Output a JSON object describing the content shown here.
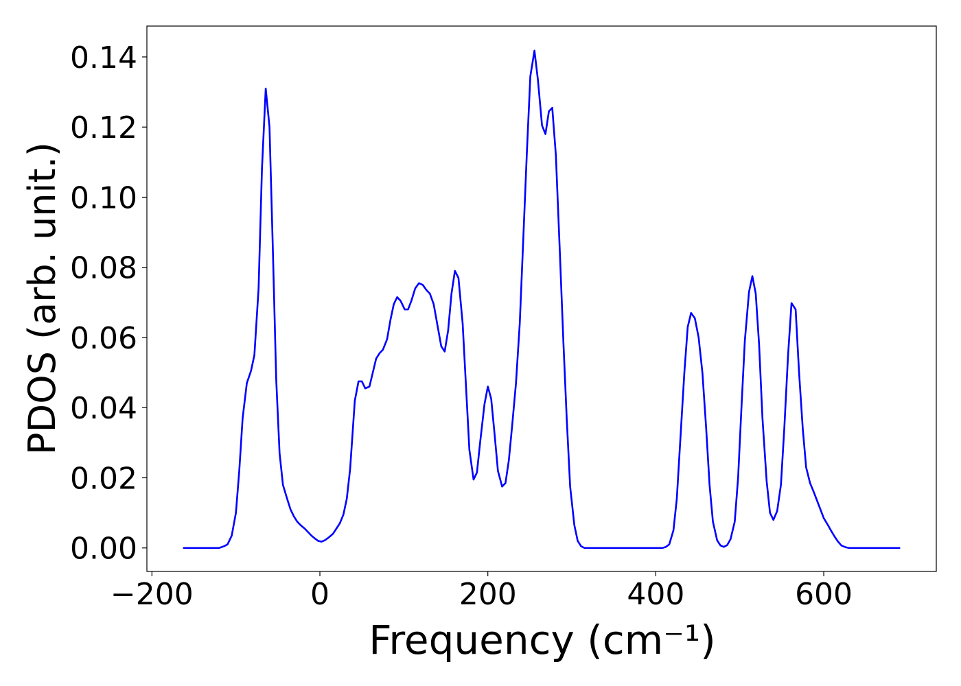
{
  "chart_data": {
    "type": "line",
    "xlabel": "Frequency (cm⁻¹)",
    "ylabel": "PDOS (arb. unit.)",
    "color": "#0000ff",
    "x": [
      -163,
      -120,
      -114,
      -110,
      -105,
      -100,
      -96,
      -92,
      -87,
      -82,
      -78,
      -73,
      -69,
      -64.5,
      -60,
      -56,
      -52,
      -48,
      -44,
      -39,
      -35,
      -31,
      -27,
      -23,
      -18,
      -14,
      -10,
      -6,
      -2,
      2,
      6,
      10.6,
      15.5,
      19.6,
      23.7,
      28,
      32,
      36,
      41.6,
      46,
      50,
      54,
      59,
      63,
      67,
      71,
      75,
      80,
      84,
      88,
      92,
      96,
      101,
      105,
      109,
      113.5,
      118,
      122.5,
      127,
      131,
      135.5,
      139.6,
      144.5,
      148.6,
      152.7,
      156.7,
      160.8,
      165,
      170,
      174,
      178,
      183,
      187,
      191,
      196,
      200,
      204,
      208,
      212,
      217,
      221,
      225,
      229,
      233.5,
      238,
      242,
      246.5,
      250.6,
      255.5,
      259.6,
      264.5,
      268.6,
      272.7,
      276.7,
      281,
      285.7,
      290,
      294,
      298,
      303,
      307,
      311,
      315,
      408,
      412,
      416,
      421,
      425,
      429,
      434,
      438,
      442,
      446.5,
      451,
      455.5,
      460,
      464,
      468,
      473,
      477,
      481,
      485,
      489,
      494,
      498,
      502,
      506,
      511,
      515,
      519,
      523,
      527,
      532,
      536,
      540,
      544.5,
      549,
      553,
      557.5,
      561.6,
      566.5,
      570.6,
      575,
      579,
      583.7,
      588,
      592,
      596,
      600,
      605,
      609,
      613,
      617,
      621,
      626,
      630,
      691
    ],
    "values": [
      0,
      0,
      0.0005,
      0.001,
      0.0035,
      0.01,
      0.022,
      0.037,
      0.047,
      0.0505,
      0.055,
      0.074,
      0.108,
      0.131,
      0.12,
      0.085,
      0.048,
      0.027,
      0.018,
      0.014,
      0.011,
      0.009,
      0.0075,
      0.0065,
      0.0055,
      0.0045,
      0.0035,
      0.0027,
      0.002,
      0.0018,
      0.0022,
      0.003,
      0.004,
      0.0055,
      0.007,
      0.0095,
      0.014,
      0.0225,
      0.042,
      0.0475,
      0.0475,
      0.0455,
      0.046,
      0.05,
      0.054,
      0.0555,
      0.0565,
      0.0595,
      0.065,
      0.0695,
      0.0715,
      0.0705,
      0.068,
      0.068,
      0.0705,
      0.074,
      0.0755,
      0.075,
      0.0735,
      0.0725,
      0.0695,
      0.064,
      0.0575,
      0.056,
      0.062,
      0.0725,
      0.079,
      0.077,
      0.064,
      0.046,
      0.028,
      0.0195,
      0.0215,
      0.0305,
      0.041,
      0.046,
      0.0425,
      0.0325,
      0.022,
      0.0175,
      0.0185,
      0.025,
      0.035,
      0.047,
      0.064,
      0.087,
      0.113,
      0.1345,
      0.1418,
      0.1335,
      0.1205,
      0.118,
      0.1245,
      0.1255,
      0.112,
      0.0845,
      0.0585,
      0.0365,
      0.0175,
      0.0065,
      0.002,
      0.0005,
      0,
      0,
      0.0003,
      0.001,
      0.005,
      0.014,
      0.03,
      0.05,
      0.063,
      0.067,
      0.0655,
      0.06,
      0.05,
      0.034,
      0.018,
      0.0075,
      0.0022,
      0.0007,
      0.0003,
      0.0008,
      0.0025,
      0.0075,
      0.02,
      0.04,
      0.059,
      0.073,
      0.0775,
      0.0725,
      0.058,
      0.037,
      0.019,
      0.01,
      0.008,
      0.0105,
      0.018,
      0.034,
      0.055,
      0.0698,
      0.068,
      0.05,
      0.034,
      0.023,
      0.0185,
      0.016,
      0.0135,
      0.011,
      0.0085,
      0.0065,
      0.0048,
      0.0032,
      0.0018,
      0.0007,
      0.0002,
      0,
      0
    ],
    "xlim": [
      -206,
      734
    ],
    "ylim": [
      -0.0067,
      0.1488
    ],
    "xticks": [
      {
        "value": -200,
        "label": "−200"
      },
      0,
      200,
      400,
      600
    ],
    "yticks": [
      {
        "value": 0,
        "label": "0.00"
      },
      {
        "value": 0.02,
        "label": "0.02"
      },
      {
        "value": 0.04,
        "label": "0.04"
      },
      {
        "value": 0.06,
        "label": "0.06"
      },
      {
        "value": 0.08,
        "label": "0.08"
      },
      {
        "value": 0.1,
        "label": "0.10"
      },
      {
        "value": 0.12,
        "label": "0.12"
      },
      {
        "value": 0.14,
        "label": "0.14"
      }
    ]
  }
}
